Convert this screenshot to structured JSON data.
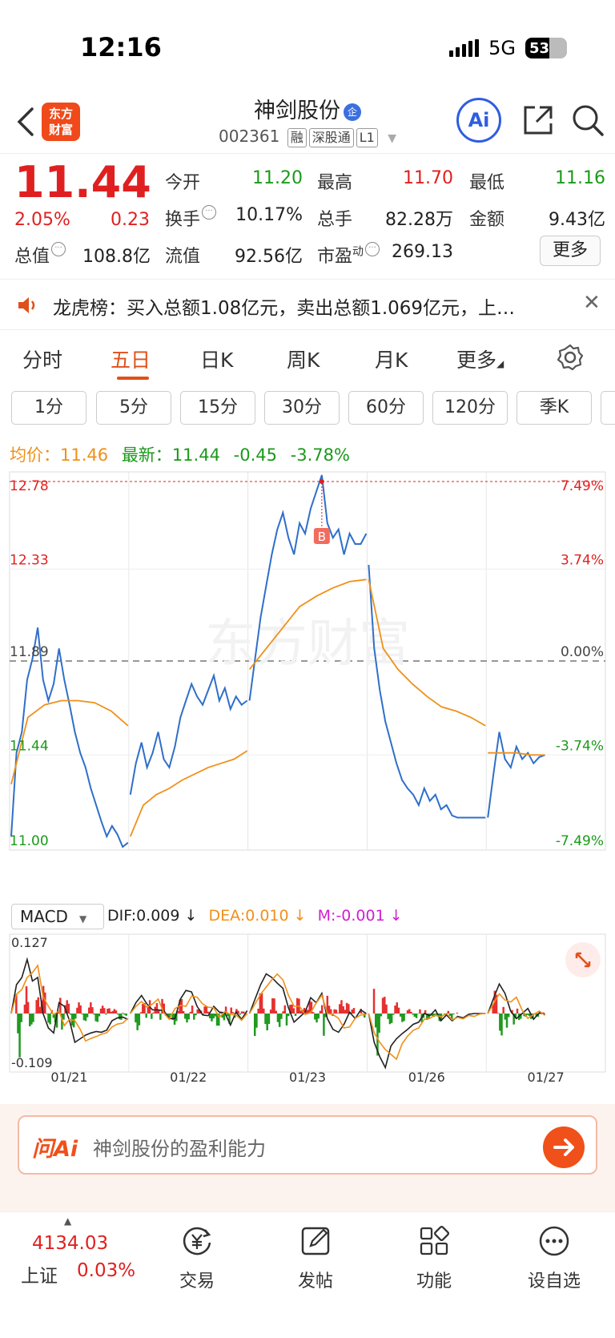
{
  "status_bar": {
    "time": "12:16",
    "network": "5G",
    "battery": "53"
  },
  "header": {
    "logo_text": "东方财富",
    "stock_name": "神剑股份",
    "qi_badge": "企",
    "code": "002361",
    "tags": [
      "融",
      "深股通",
      "L1"
    ],
    "ai_label": "Ai"
  },
  "quote": {
    "price": "11.44",
    "change_pct": "2.05%",
    "change": "0.23",
    "open_label": "今开",
    "open": "11.20",
    "high_label": "最高",
    "high": "11.70",
    "low_label": "最低",
    "low": "11.16",
    "turnover_label": "换手",
    "turnover": "10.17%",
    "volume_label": "总手",
    "volume": "82.28万",
    "amount_label": "金额",
    "amount": "9.43亿",
    "mktcap_label": "总值",
    "mktcap": "108.8亿",
    "float_label": "流值",
    "float": "92.56亿",
    "pe_label": "市盈",
    "pe_sup": "动",
    "pe": "269.13",
    "more": "更多"
  },
  "news": {
    "text": "龙虎榜：买入总额1.08亿元，卖出总额1.069亿元，上…"
  },
  "tabs": [
    "分时",
    "五日",
    "日K",
    "周K",
    "月K",
    "更多"
  ],
  "active_tab": "五日",
  "periods": [
    "1分",
    "5分",
    "15分",
    "30分",
    "60分",
    "120分",
    "季K"
  ],
  "legend": {
    "avg_label": "均价：",
    "avg": "11.46",
    "latest_label": "最新：",
    "latest": "11.44",
    "chg": "-0.45",
    "chg_pct": "-3.78%"
  },
  "chart_data": {
    "type": "line",
    "y_labels_left": [
      "12.78",
      "12.33",
      "11.89",
      "11.44",
      "11.00"
    ],
    "y_labels_right": [
      "7.49%",
      "3.74%",
      "0.00%",
      "-3.74%",
      "-7.49%"
    ],
    "x_labels": [
      "01/21",
      "01/22",
      "01/23",
      "01/26",
      "01/27"
    ],
    "ylim": [
      11.0,
      12.78
    ],
    "prev_close": 11.89,
    "marker": "B",
    "series": [
      {
        "name": "price",
        "color": "#2f6fc9",
        "days": [
          [
            11.05,
            11.45,
            11.55,
            11.8,
            11.9,
            12.05,
            11.8,
            11.7,
            11.78,
            11.95,
            11.8,
            11.68,
            11.55,
            11.45,
            11.38,
            11.28,
            11.2,
            11.12,
            11.05,
            11.1,
            11.06,
            11.0,
            11.02
          ],
          [
            11.25,
            11.4,
            11.5,
            11.38,
            11.45,
            11.55,
            11.42,
            11.38,
            11.48,
            11.62,
            11.7,
            11.78,
            11.72,
            11.68,
            11.75,
            11.82,
            11.7,
            11.76,
            11.66,
            11.72,
            11.68,
            11.7
          ],
          [
            11.7,
            11.9,
            12.1,
            12.25,
            12.4,
            12.52,
            12.6,
            12.48,
            12.4,
            12.55,
            12.5,
            12.62,
            12.7,
            12.78,
            12.55,
            12.48,
            12.52,
            12.4,
            12.5,
            12.45,
            12.45,
            12.5
          ],
          [
            12.35,
            11.95,
            11.75,
            11.6,
            11.5,
            11.4,
            11.32,
            11.28,
            11.25,
            11.2,
            11.28,
            11.22,
            11.25,
            11.18,
            11.2,
            11.15,
            11.14,
            11.14,
            11.14,
            11.14,
            11.14,
            11.14
          ],
          [
            11.14,
            11.35,
            11.55,
            11.42,
            11.38,
            11.48,
            11.42,
            11.45,
            11.4,
            11.43,
            11.44
          ]
        ]
      },
      {
        "name": "avg",
        "color": "#f0901a",
        "days": [
          [
            11.3,
            11.62,
            11.68,
            11.7,
            11.7,
            11.69,
            11.65,
            11.58
          ],
          [
            11.05,
            11.2,
            11.25,
            11.28,
            11.32,
            11.35,
            11.38,
            11.4,
            11.42,
            11.46
          ],
          [
            11.85,
            11.95,
            12.05,
            12.15,
            12.2,
            12.24,
            12.27,
            12.28
          ],
          [
            12.28,
            11.95,
            11.85,
            11.78,
            11.72,
            11.67,
            11.65,
            11.62,
            11.58
          ],
          [
            11.45,
            11.45,
            11.45,
            11.44,
            11.44
          ]
        ]
      }
    ],
    "macd": {
      "dif": "0.009",
      "dea": "0.010",
      "m": "-0.001",
      "ymax": "0.127",
      "ymin": "-0.109"
    }
  },
  "macd_labels": {
    "selector": "MACD",
    "dif_label": "DIF:",
    "dea_label": "DEA:",
    "m_label": "M:"
  },
  "ask": {
    "brand": "问Ai",
    "placeholder": "神剑股份的盈利能力"
  },
  "bottom": {
    "index_value": "4134.03",
    "index_name": "上证",
    "index_pct": "0.03%",
    "items": [
      "交易",
      "发帖",
      "功能",
      "设自选"
    ]
  }
}
